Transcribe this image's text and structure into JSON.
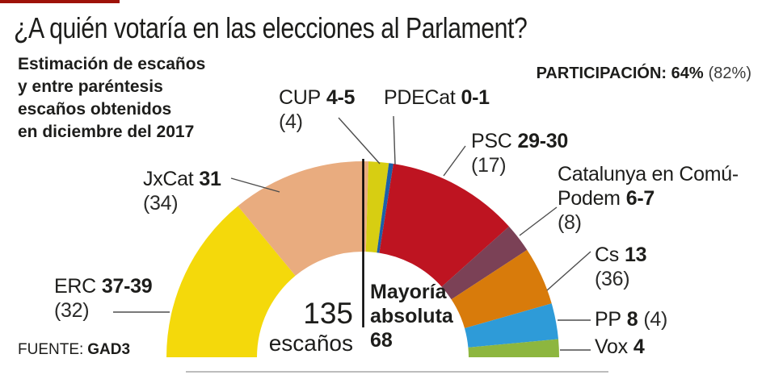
{
  "title": "¿A quién votaría en las elecciones al Parlament?",
  "subtitle_lines": [
    "Estimación de escaños",
    "y entre paréntesis",
    "escaños obtenidos",
    "en diciembre del 2017"
  ],
  "participation": {
    "bold": "PARTICIPACIÓN: 64%",
    "prev": "(82%)"
  },
  "center": {
    "total_value": "135",
    "total_unit": "escaños",
    "majority_line1": "Mayoría",
    "majority_line2": "absoluta",
    "majority_value": "68"
  },
  "source": {
    "label": "FUENTE:",
    "value": "GAD3"
  },
  "party_labels": {
    "erc": {
      "name": "ERC",
      "value": "37-39",
      "prev": "(32)"
    },
    "jxcat": {
      "name": "JxCat",
      "value": "31",
      "prev": "(34)"
    },
    "cup": {
      "name": "CUP",
      "value": "4-5",
      "prev": "(4)"
    },
    "pdecat": {
      "name": "PDECat",
      "value": "0-1",
      "prev": ""
    },
    "psc": {
      "name": "PSC",
      "value": "29-30",
      "prev": "(17)"
    },
    "comu": {
      "name_line1": "Catalunya en Comú-",
      "name_line2": "Podem",
      "value": "6-7",
      "prev": "(8)"
    },
    "cs": {
      "name": "Cs",
      "value": "13",
      "prev": "(36)"
    },
    "pp": {
      "name": "PP",
      "value": "8",
      "prev": "(4)"
    },
    "vox": {
      "name": "Vox",
      "value": "4",
      "prev": ""
    }
  },
  "chart_data": {
    "type": "half-donut",
    "title": "¿A quién votaría en las elecciones al Parlament?",
    "total_seats": 135,
    "majority_seats": 68,
    "participation_pct": 64,
    "participation_2017_pct": 82,
    "source": "GAD3",
    "legend_position": "around-arc",
    "series": [
      {
        "party": "ERC",
        "estimate": "37-39",
        "seats_mid": 38,
        "previous_2017": 32,
        "color": "#F4D90B"
      },
      {
        "party": "JxCat",
        "estimate": "31",
        "seats_mid": 31,
        "previous_2017": 34,
        "color": "#E9AC7F"
      },
      {
        "party": "CUP",
        "estimate": "4-5",
        "seats_mid": 4.5,
        "previous_2017": 4,
        "color": "#D7CE12"
      },
      {
        "party": "PDECat",
        "estimate": "0-1",
        "seats_mid": 0.5,
        "previous_2017": null,
        "color": "#1C5FA8"
      },
      {
        "party": "PSC",
        "estimate": "29-30",
        "seats_mid": 29.5,
        "previous_2017": 17,
        "color": "#BE1421"
      },
      {
        "party": "Catalunya en Comú-Podem",
        "estimate": "6-7",
        "seats_mid": 6.5,
        "previous_2017": 8,
        "color": "#7B4156"
      },
      {
        "party": "Cs",
        "estimate": "13",
        "seats_mid": 13,
        "previous_2017": 36,
        "color": "#D87B0B"
      },
      {
        "party": "PP",
        "estimate": "8",
        "seats_mid": 8,
        "previous_2017": 4,
        "color": "#2E9BD8"
      },
      {
        "party": "Vox",
        "estimate": "4",
        "seats_mid": 4,
        "previous_2017": null,
        "color": "#8DB63F"
      }
    ]
  },
  "decor": {
    "top_rule_color": "#9E1208",
    "bottom_rule_color": "#BDBDBD",
    "leader_line_color": "#4D4D4D",
    "majority_line_color": "#000000",
    "text_color": "#1D1D1B"
  }
}
